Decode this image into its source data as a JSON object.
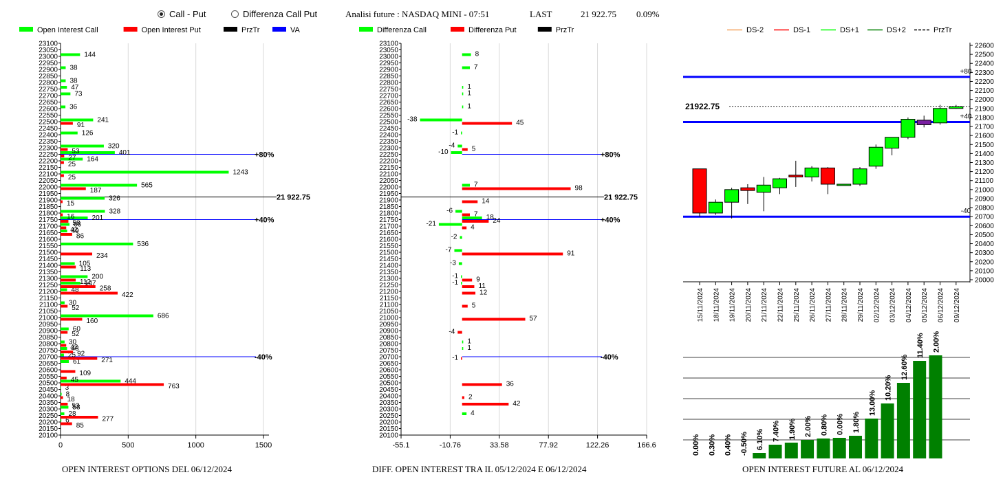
{
  "header": {
    "radio_call_put": "Call - Put",
    "radio_diff": "Differenza Call Put",
    "analysis": "Analisi future : NASDAQ MINI - 07:51",
    "last_label": "LAST",
    "last_value": "21 922.75",
    "last_pct": "0.09%"
  },
  "titles": {
    "left": "OPEN INTEREST OPTIONS DEL 06/12/2024",
    "mid": "DIFF. OPEN INTEREST TRA IL 05/12/2024 E 06/12/2024",
    "right": "OPEN INTEREST FUTURE AL 06/12/2024"
  },
  "colors": {
    "call": "#00ff00",
    "put": "#ff0000",
    "przTr": "#000000",
    "va": "#0000ff",
    "dark_green": "#008000",
    "purple": "#7a1fa2"
  },
  "chart_data": [
    {
      "type": "bar",
      "orientation": "horizontal",
      "legend": [
        "Open Interest Call",
        "Open Interest Put",
        "PrzTr",
        "VA"
      ],
      "strikes": [
        23100,
        23050,
        23000,
        22950,
        22900,
        22850,
        22800,
        22750,
        22700,
        22650,
        22600,
        22550,
        22500,
        22450,
        22400,
        22350,
        22300,
        22250,
        22200,
        22150,
        22100,
        22050,
        22000,
        21950,
        21900,
        21850,
        21800,
        21750,
        21700,
        21650,
        21600,
        21550,
        21500,
        21450,
        21400,
        21350,
        21300,
        21250,
        21200,
        21150,
        21100,
        21050,
        21000,
        20950,
        20900,
        20850,
        20800,
        20750,
        20700,
        20650,
        20600,
        20550,
        20500,
        20450,
        20400,
        20350,
        20300,
        20250,
        20200,
        20150,
        20100
      ],
      "xticks": [
        0,
        500,
        1000,
        1500
      ],
      "xlim": [
        0,
        1500
      ],
      "series": [
        {
          "name": "Open Interest Call",
          "points": [
            [
              23000,
              144
            ],
            [
              22900,
              38
            ],
            [
              22800,
              38
            ],
            [
              22750,
              47
            ],
            [
              22700,
              73
            ],
            [
              22600,
              36
            ],
            [
              22500,
              241
            ],
            [
              22400,
              126
            ],
            [
              22300,
              320
            ],
            [
              22250,
              401
            ],
            [
              22200,
              164
            ],
            [
              22100,
              1243
            ],
            [
              22000,
              565
            ],
            [
              21900,
              326
            ],
            [
              21800,
              328
            ],
            [
              21750,
              201
            ],
            [
              21700,
              66
            ],
            [
              21650,
              49
            ],
            [
              21550,
              536
            ],
            [
              21400,
              105
            ],
            [
              21300,
              200
            ],
            [
              21250,
              147
            ],
            [
              21200,
              48
            ],
            [
              21100,
              30
            ],
            [
              21000,
              686
            ],
            [
              20900,
              60
            ],
            [
              20800,
              30
            ],
            [
              20750,
              48
            ],
            [
              20700,
              25
            ],
            [
              20650,
              61
            ],
            [
              20500,
              444
            ],
            [
              20450,
              3
            ],
            [
              20400,
              8
            ],
            [
              20300,
              58
            ],
            [
              20250,
              28
            ],
            [
              20200,
              6
            ]
          ]
        },
        {
          "name": "Open Interest Put",
          "points": [
            [
              22500,
              91
            ],
            [
              22300,
              53
            ],
            [
              22250,
              27
            ],
            [
              22200,
              25
            ],
            [
              22100,
              25
            ],
            [
              22000,
              187
            ],
            [
              21900,
              15
            ],
            [
              21800,
              16
            ],
            [
              21750,
              58
            ],
            [
              21700,
              42
            ],
            [
              21650,
              86
            ],
            [
              21500,
              234
            ],
            [
              21400,
              113
            ],
            [
              21300,
              112
            ],
            [
              21250,
              258
            ],
            [
              21200,
              422
            ],
            [
              21100,
              52
            ],
            [
              21000,
              160
            ],
            [
              20900,
              52
            ],
            [
              20800,
              42
            ],
            [
              20750,
              92
            ],
            [
              20700,
              271
            ],
            [
              20600,
              109
            ],
            [
              20550,
              45
            ],
            [
              20500,
              763
            ],
            [
              20400,
              18
            ],
            [
              20350,
              53
            ],
            [
              20250,
              277
            ],
            [
              20200,
              85
            ]
          ]
        }
      ],
      "lines": [
        {
          "name": "PrzTr",
          "strike": 21922.75,
          "label": "21 922.75"
        },
        {
          "name": "VA",
          "strike": 22250,
          "label": "+80%"
        },
        {
          "name": "VA",
          "strike": 21750,
          "label": "+40%"
        },
        {
          "name": "VA",
          "strike": 20700,
          "label": "-40%"
        }
      ]
    },
    {
      "type": "bar",
      "orientation": "horizontal",
      "legend": [
        "Differenza Call",
        "Differenza Put",
        "PrzTr"
      ],
      "xticks": [
        -55.1,
        -10.76,
        33.58,
        77.92,
        122.26,
        166.6
      ],
      "xlim": [
        -55.1,
        166.6
      ],
      "series": [
        {
          "name": "Differenza Call",
          "points": [
            [
              23000,
              8
            ],
            [
              22900,
              7
            ],
            [
              22750,
              1
            ],
            [
              22700,
              1
            ],
            [
              22600,
              1
            ],
            [
              22500,
              -38
            ],
            [
              22400,
              -1
            ],
            [
              22300,
              -4
            ],
            [
              22250,
              -10
            ],
            [
              22000,
              7
            ],
            [
              21800,
              -6
            ],
            [
              21750,
              18
            ],
            [
              21700,
              -21
            ],
            [
              21600,
              -2
            ],
            [
              21500,
              -7
            ],
            [
              21400,
              -3
            ],
            [
              21300,
              -1
            ],
            [
              21250,
              -1
            ],
            [
              20800,
              1
            ],
            [
              20750,
              1
            ],
            [
              20250,
              4
            ]
          ]
        },
        {
          "name": "Differenza Put",
          "points": [
            [
              22500,
              45
            ],
            [
              22300,
              5
            ],
            [
              22000,
              98
            ],
            [
              21900,
              14
            ],
            [
              21800,
              7
            ],
            [
              21750,
              24
            ],
            [
              21700,
              4
            ],
            [
              21500,
              91
            ],
            [
              21300,
              9
            ],
            [
              21250,
              11
            ],
            [
              21200,
              12
            ],
            [
              21100,
              5
            ],
            [
              21000,
              57
            ],
            [
              20900,
              -4
            ],
            [
              20700,
              -1
            ],
            [
              20500,
              36
            ],
            [
              20400,
              2
            ],
            [
              20350,
              42
            ]
          ]
        }
      ],
      "lines": [
        {
          "name": "PrzTr",
          "strike": 21922.75,
          "label": "21 922.75"
        },
        {
          "name": "VA",
          "strike": 22250,
          "label": "+80%"
        },
        {
          "name": "VA",
          "strike": 21750,
          "label": "+40%"
        },
        {
          "name": "VA",
          "strike": 20700,
          "label": "-40%"
        }
      ]
    },
    {
      "type": "candlestick",
      "legend": [
        "DS-2",
        "DS-1",
        "DS+1",
        "DS+2",
        "PrzTr"
      ],
      "ylim": [
        20000,
        22600
      ],
      "yticks": [
        20000,
        20100,
        20200,
        20300,
        20400,
        20500,
        20600,
        20700,
        20800,
        20900,
        21000,
        21100,
        21200,
        21300,
        21400,
        21500,
        21600,
        21700,
        21800,
        21900,
        22000,
        22100,
        22200,
        22300,
        22400,
        22500,
        22600
      ],
      "candles": [
        {
          "date": "15/11/2024",
          "open": 21230,
          "close": 20740,
          "high": 21230,
          "low": 20700,
          "color": "red"
        },
        {
          "date": "18/11/2024",
          "open": 20740,
          "close": 20860,
          "high": 20890,
          "low": 20720,
          "color": "green"
        },
        {
          "date": "19/11/2024",
          "open": 20860,
          "close": 21000,
          "high": 21020,
          "low": 20680,
          "color": "green"
        },
        {
          "date": "20/11/2024",
          "open": 21020,
          "close": 20990,
          "high": 21060,
          "low": 20840,
          "color": "red"
        },
        {
          "date": "21/11/2024",
          "open": 20970,
          "close": 21050,
          "high": 21140,
          "low": 20760,
          "color": "green"
        },
        {
          "date": "22/11/2024",
          "open": 21020,
          "close": 21120,
          "high": 21130,
          "low": 20950,
          "color": "green"
        },
        {
          "date": "25/11/2024",
          "open": 21160,
          "close": 21140,
          "high": 21320,
          "low": 21030,
          "color": "red"
        },
        {
          "date": "26/11/2024",
          "open": 21140,
          "close": 21240,
          "high": 21260,
          "low": 21090,
          "color": "green"
        },
        {
          "date": "27/11/2024",
          "open": 21240,
          "close": 21060,
          "high": 21250,
          "low": 20950,
          "color": "red"
        },
        {
          "date": "28/11/2024",
          "open": 21060,
          "close": 21060,
          "high": 21060,
          "low": 21060,
          "color": "green"
        },
        {
          "date": "29/11/2024",
          "open": 21060,
          "close": 21230,
          "high": 21250,
          "low": 21040,
          "color": "green"
        },
        {
          "date": "02/12/2024",
          "open": 21260,
          "close": 21470,
          "high": 21500,
          "low": 21230,
          "color": "green"
        },
        {
          "date": "03/12/2024",
          "open": 21460,
          "close": 21580,
          "high": 21580,
          "low": 21380,
          "color": "green"
        },
        {
          "date": "04/12/2024",
          "open": 21580,
          "close": 21780,
          "high": 21800,
          "low": 21560,
          "color": "green"
        },
        {
          "date": "05/12/2024",
          "open": 21770,
          "close": 21720,
          "high": 21820,
          "low": 21690,
          "color": "purple"
        },
        {
          "date": "06/12/2024",
          "open": 21740,
          "close": 21900,
          "high": 21940,
          "low": 21720,
          "color": "green"
        },
        {
          "date": "09/12/2024",
          "open": 21900,
          "close": 21920,
          "high": 21940,
          "low": 21895,
          "color": "green"
        }
      ],
      "przTr": {
        "value": 21922.75,
        "label": "21922.75"
      },
      "levels": [
        {
          "value": 22250,
          "label": "+80"
        },
        {
          "value": 21750,
          "label": "+40"
        },
        {
          "value": 20700,
          "label": "-40"
        }
      ]
    },
    {
      "type": "bar",
      "categories": [
        "15/11/2024",
        "18/11/2024",
        "19/11/2024",
        "20/11/2024",
        "21/11/2024",
        "22/11/2024",
        "25/11/2024",
        "26/11/2024",
        "27/11/2024",
        "28/11/2024",
        "29/11/2024",
        "02/12/2024",
        "03/12/2024",
        "04/12/2024",
        "05/12/2024",
        "06/12/2024"
      ],
      "labels": [
        "0.00%",
        "0.30%",
        "0.40%",
        "-0.50%",
        "6.10%",
        "7.40%",
        "1.90%",
        "2.00%",
        "0.80%",
        "0.00%",
        "1.80%",
        "13.00%",
        "10.20%",
        "12.60%",
        "11.40%",
        "2.00%"
      ],
      "values": [
        0,
        0,
        0,
        0,
        8,
        20,
        23,
        27,
        29,
        30,
        33,
        58,
        80,
        110,
        142,
        150
      ]
    }
  ]
}
